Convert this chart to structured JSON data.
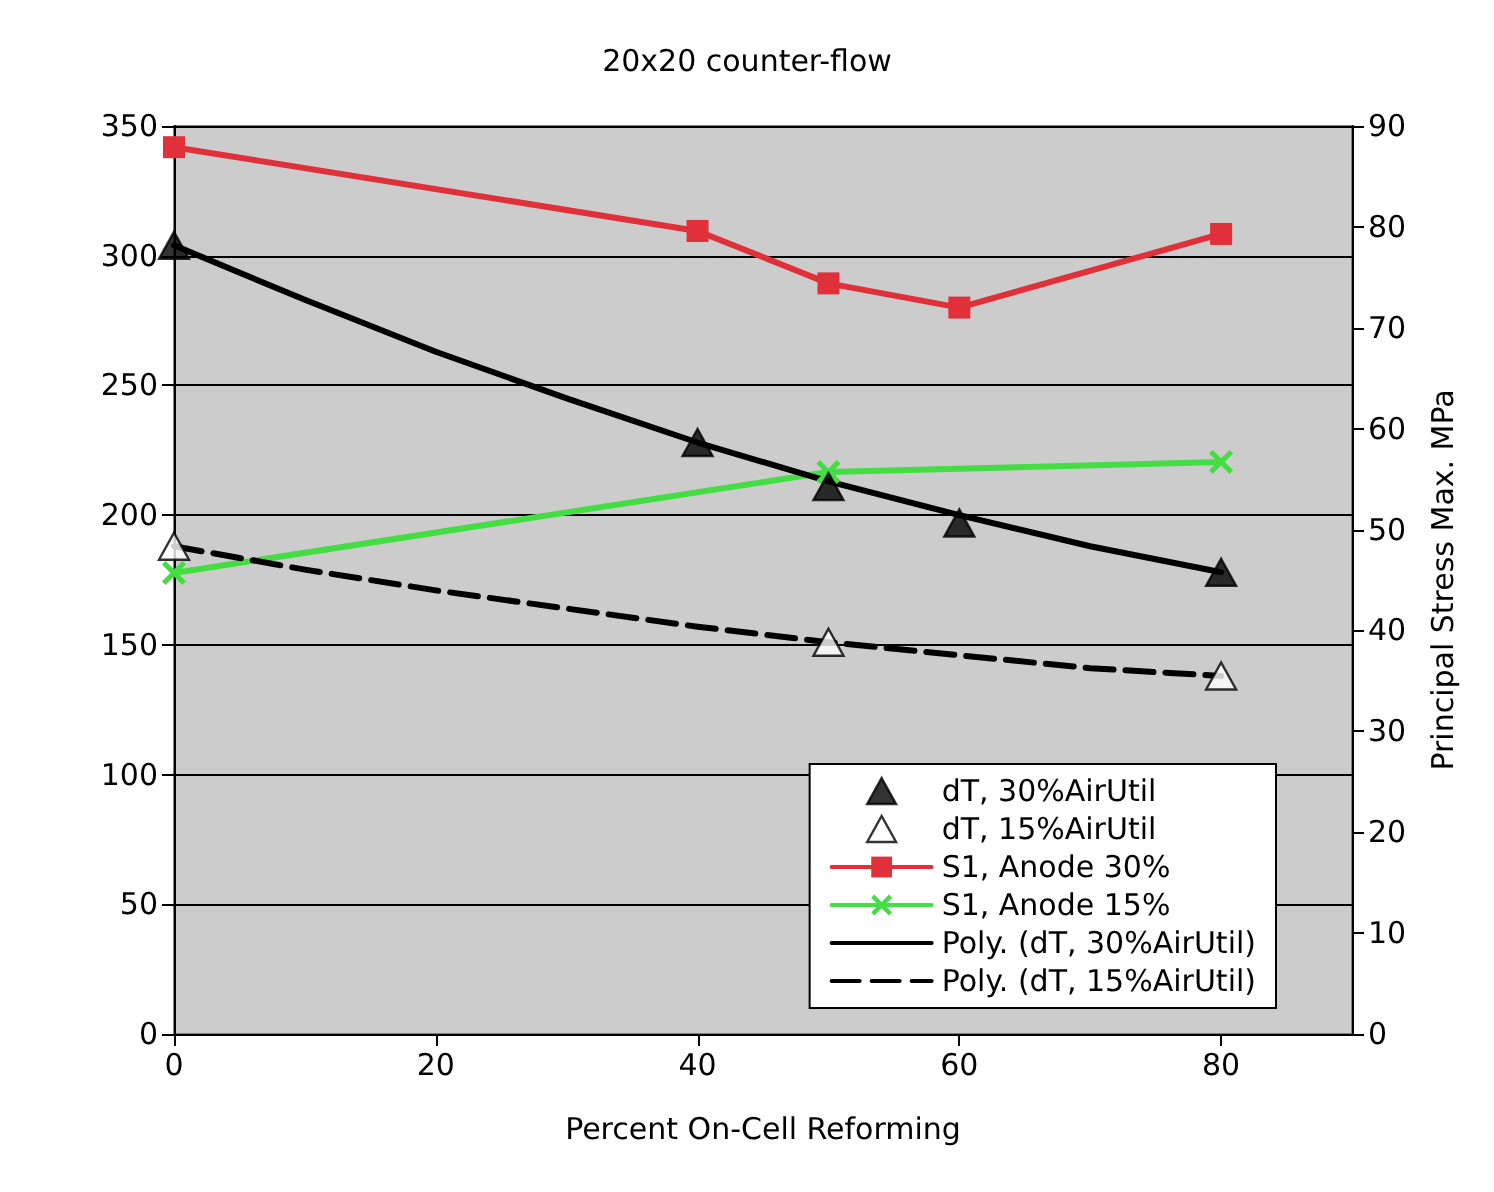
{
  "chart_data": {
    "type": "line",
    "title": "20x20 counter-flow",
    "xlabel": "Percent On-Cell Reforming",
    "y2label": "Principal Stress Max. MPa",
    "xlim": [
      0,
      90
    ],
    "xticks": [
      0,
      20,
      40,
      60,
      80
    ],
    "ylim": [
      0,
      350
    ],
    "yticks": [
      0,
      50,
      100,
      150,
      200,
      250,
      300,
      350
    ],
    "y2lim": [
      0,
      90
    ],
    "y2ticks": [
      0,
      10,
      20,
      30,
      40,
      50,
      60,
      70,
      80,
      90
    ],
    "grid": "y",
    "legend": "bottom right",
    "series": [
      {
        "name": "dT, 30%AirUtil",
        "type": "scatter",
        "marker": "triangle",
        "color": "#000000",
        "x": [
          0,
          40,
          50,
          60,
          80
        ],
        "values": [
          304,
          228,
          211,
          197,
          178
        ]
      },
      {
        "name": "dT, 15%AirUtil",
        "type": "scatter",
        "marker": "triangle",
        "color": "#ffffff",
        "x": [
          0,
          50,
          80
        ],
        "values": [
          188,
          151,
          138
        ]
      },
      {
        "name": "S1, Anode 30%",
        "type": "line",
        "marker": "square",
        "color": "#e0303a",
        "axis": "y2",
        "x": [
          0,
          40,
          50,
          60,
          80
        ],
        "values": [
          87.9,
          79.6,
          74.4,
          72.0,
          79.3
        ]
      },
      {
        "name": "S1, Anode 15%",
        "type": "line",
        "marker": "cross",
        "color": "#44dd44",
        "axis": "y2",
        "x": [
          0,
          50,
          80
        ],
        "values": [
          45.7,
          55.7,
          56.7
        ]
      },
      {
        "name": "Poly. (dT, 30%AirUtil)",
        "type": "line",
        "marker": "none",
        "line_style": "solid",
        "color": "#000000",
        "x": [
          0,
          10,
          20,
          30,
          40,
          50,
          60,
          70,
          80
        ],
        "values": [
          304,
          283,
          263,
          245,
          228,
          213,
          200,
          188,
          178
        ]
      },
      {
        "name": "Poly. (dT, 15%AirUtil)",
        "type": "line",
        "marker": "none",
        "line_style": "dashed",
        "color": "#000000",
        "x": [
          0,
          10,
          20,
          30,
          40,
          50,
          60,
          70,
          80
        ],
        "values": [
          188,
          179,
          171,
          164,
          157,
          151,
          146,
          141,
          138
        ]
      }
    ]
  }
}
